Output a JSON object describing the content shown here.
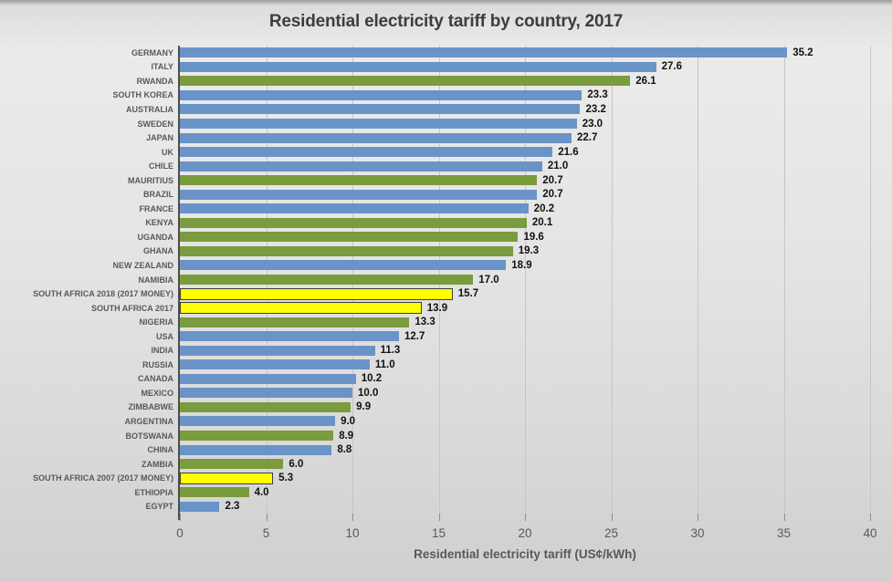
{
  "title": "Residential electricity tariff by country, 2017",
  "colors": {
    "blue": "#6a93c8",
    "green": "#7a9b3e",
    "yellow": "#ffff00",
    "yellow_border": "#3c3c3c",
    "axis_line": "#4d4d4d",
    "gridline": "#c6c6c6",
    "category_text": "#595959",
    "value_text": "#111111"
  },
  "chart_data": {
    "type": "bar",
    "orientation": "horizontal",
    "title": "Residential electricity tariff by country, 2017",
    "xlabel": "Residential electricity tariff (US¢/kWh)",
    "xlim": [
      0,
      40
    ],
    "xticks": [
      0,
      5,
      10,
      15,
      20,
      25,
      30,
      35,
      40
    ],
    "grid": true,
    "legend": "none",
    "categories": [
      "GERMANY",
      "ITALY",
      "RWANDA",
      "SOUTH KOREA",
      "AUSTRALIA",
      "SWEDEN",
      "JAPAN",
      "UK",
      "CHILE",
      "MAURITIUS",
      "BRAZIL",
      "FRANCE",
      "KENYA",
      "UGANDA",
      "GHANA",
      "NEW ZEALAND",
      "NAMIBIA",
      "SOUTH AFRICA 2018 (2017 MONEY)",
      "SOUTH AFRICA 2017",
      "NIGERIA",
      "USA",
      "INDIA",
      "RUSSIA",
      "CANADA",
      "MEXICO",
      "ZIMBABWE",
      "ARGENTINA",
      "BOTSWANA",
      "CHINA",
      "ZAMBIA",
      "SOUTH AFRICA 2007 (2017 MONEY)",
      "ETHIOPIA",
      "EGYPT"
    ],
    "values": [
      35.2,
      27.6,
      26.1,
      23.3,
      23.2,
      23.0,
      22.7,
      21.6,
      21.0,
      20.7,
      20.7,
      20.2,
      20.1,
      19.6,
      19.3,
      18.9,
      17.0,
      15.7,
      13.9,
      13.3,
      12.7,
      11.3,
      11.0,
      10.2,
      10.0,
      9.9,
      9.0,
      8.9,
      8.8,
      6.0,
      5.3,
      4.0,
      2.3
    ],
    "value_labels": [
      "35.2",
      "27.6",
      "26.1",
      "23.3",
      "23.2",
      "23.0",
      "22.7",
      "21.6",
      "21.0",
      "20.7",
      "20.7",
      "20.2",
      "20.1",
      "19.6",
      "19.3",
      "18.9",
      "17.0",
      "15.7",
      "13.9",
      "13.3",
      "12.7",
      "11.3",
      "11.0",
      "10.2",
      "10.0",
      "9.9",
      "9.0",
      "8.9",
      "8.8",
      "6.0",
      "5.3",
      "4.0",
      "2.3"
    ],
    "bar_colors": [
      "blue",
      "blue",
      "green",
      "blue",
      "blue",
      "blue",
      "blue",
      "blue",
      "blue",
      "green",
      "blue",
      "blue",
      "green",
      "green",
      "green",
      "blue",
      "green",
      "yellow",
      "yellow",
      "green",
      "blue",
      "blue",
      "blue",
      "blue",
      "blue",
      "green",
      "blue",
      "green",
      "blue",
      "green",
      "yellow",
      "green",
      "blue"
    ]
  }
}
